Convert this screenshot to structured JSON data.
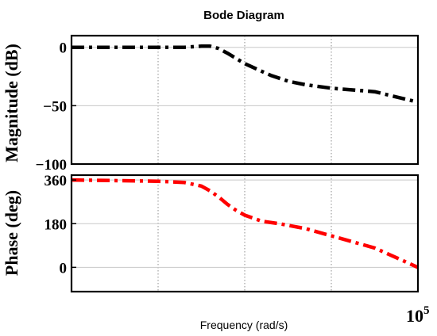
{
  "chart_data": {
    "type": "line",
    "title": "Bode Diagram",
    "xlabel": "Frequency  (rad/s)",
    "x_scale": "log",
    "x_end_label": {
      "base": "10",
      "exp": "5"
    },
    "xlim": [
      10,
      100000
    ],
    "grid": true,
    "panels": [
      {
        "name": "magnitude",
        "ylabel": "Magnitude (dB)",
        "ylim": [
          -100,
          10
        ],
        "yticks": [
          0,
          -50,
          -100
        ],
        "ytick_labels": [
          "0",
          "−50",
          "−100"
        ],
        "series": [
          {
            "color": "#000000",
            "line_style": "dash-dot",
            "x": [
              10,
              31.6,
              100,
              200,
              316,
              398,
              500,
              631,
              1000,
              2000,
              3162,
              5012,
              10000,
              31623,
              100000
            ],
            "y": [
              0,
              0,
              0,
              0,
              1,
              1,
              -1,
              -5,
              -14,
              -24,
              -29,
              -32,
              -35,
              -38,
              -47
            ]
          }
        ]
      },
      {
        "name": "phase",
        "ylabel": "Phase (deg)",
        "ylim": [
          -100,
          380
        ],
        "yticks": [
          360,
          180,
          0
        ],
        "ytick_labels": [
          "360",
          "180",
          "0"
        ],
        "series": [
          {
            "color": "#ff0000",
            "line_style": "dash-dot",
            "x": [
              10,
              100,
              200,
              316,
              398,
              501,
              631,
              794,
              1000,
              1585,
              2512,
              5012,
              10000,
              31623,
              100000
            ],
            "y": [
              360,
              355,
              350,
              335,
              315,
              290,
              260,
              235,
              215,
              190,
              180,
              160,
              130,
              80,
              0
            ]
          }
        ]
      }
    ]
  }
}
